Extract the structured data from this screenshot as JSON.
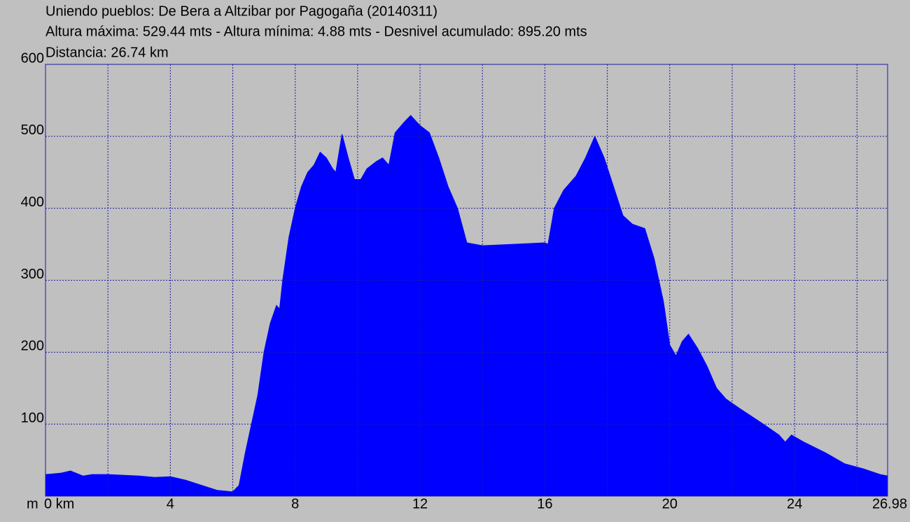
{
  "chart_data": {
    "type": "area",
    "title": "Uniendo pueblos: De Bera a Altzibar por Pagogaña (20140311)",
    "subtitle": "Altura máxima: 529.44 mts - Altura mínima: 4.88 mts - Desnivel acumulado: 895.20 mts",
    "annotation": "Distancia: 26.74 km",
    "y_label": "m",
    "color": "#0000ff",
    "grid_color": "#1a1aa0",
    "x": [
      0,
      0.5,
      0.8,
      1.2,
      1.5,
      2,
      3,
      3.5,
      4,
      4.5,
      5,
      5.5,
      6,
      6.2,
      6.4,
      6.6,
      6.8,
      7.0,
      7.2,
      7.4,
      7.5,
      7.6,
      7.8,
      8.0,
      8.2,
      8.4,
      8.6,
      8.8,
      9.0,
      9.2,
      9.3,
      9.5,
      9.7,
      9.9,
      10.1,
      10.3,
      10.6,
      10.8,
      11.0,
      11.2,
      11.5,
      11.7,
      12.0,
      12.3,
      12.6,
      12.9,
      13.2,
      13.5,
      14,
      15,
      16,
      16.1,
      16.3,
      16.6,
      17.0,
      17.3,
      17.6,
      17.9,
      18.2,
      18.5,
      18.8,
      19.2,
      19.5,
      19.8,
      20.0,
      20.2,
      20.4,
      20.6,
      20.9,
      21.2,
      21.5,
      21.8,
      22.3,
      23.0,
      23.5,
      23.7,
      23.9,
      24.3,
      25.0,
      25.6,
      26.2,
      26.74,
      26.98
    ],
    "values": [
      30,
      32,
      35,
      28,
      30,
      30,
      28,
      26,
      27,
      22,
      15,
      8,
      6,
      15,
      60,
      100,
      140,
      200,
      240,
      265,
      260,
      300,
      360,
      400,
      430,
      450,
      460,
      478,
      470,
      455,
      450,
      503,
      470,
      440,
      440,
      455,
      465,
      470,
      460,
      505,
      520,
      529,
      515,
      505,
      470,
      430,
      400,
      352,
      348,
      350,
      352,
      350,
      400,
      425,
      445,
      470,
      500,
      470,
      430,
      390,
      378,
      372,
      330,
      270,
      210,
      195,
      215,
      225,
      205,
      180,
      150,
      135,
      120,
      100,
      85,
      75,
      85,
      75,
      60,
      45,
      38,
      30,
      28
    ],
    "xlim": [
      0,
      26.98
    ],
    "ylim": [
      0,
      600
    ],
    "xticks": [
      {
        "value": 0,
        "label": "0 km"
      },
      4,
      8,
      12,
      16,
      20,
      24,
      26.98
    ],
    "xgrid": [
      2,
      4,
      6,
      8,
      10,
      12,
      14,
      16,
      18,
      20,
      22,
      24,
      26
    ],
    "yticks": [
      100,
      200,
      300,
      400,
      500,
      600
    ],
    "grid": true
  }
}
